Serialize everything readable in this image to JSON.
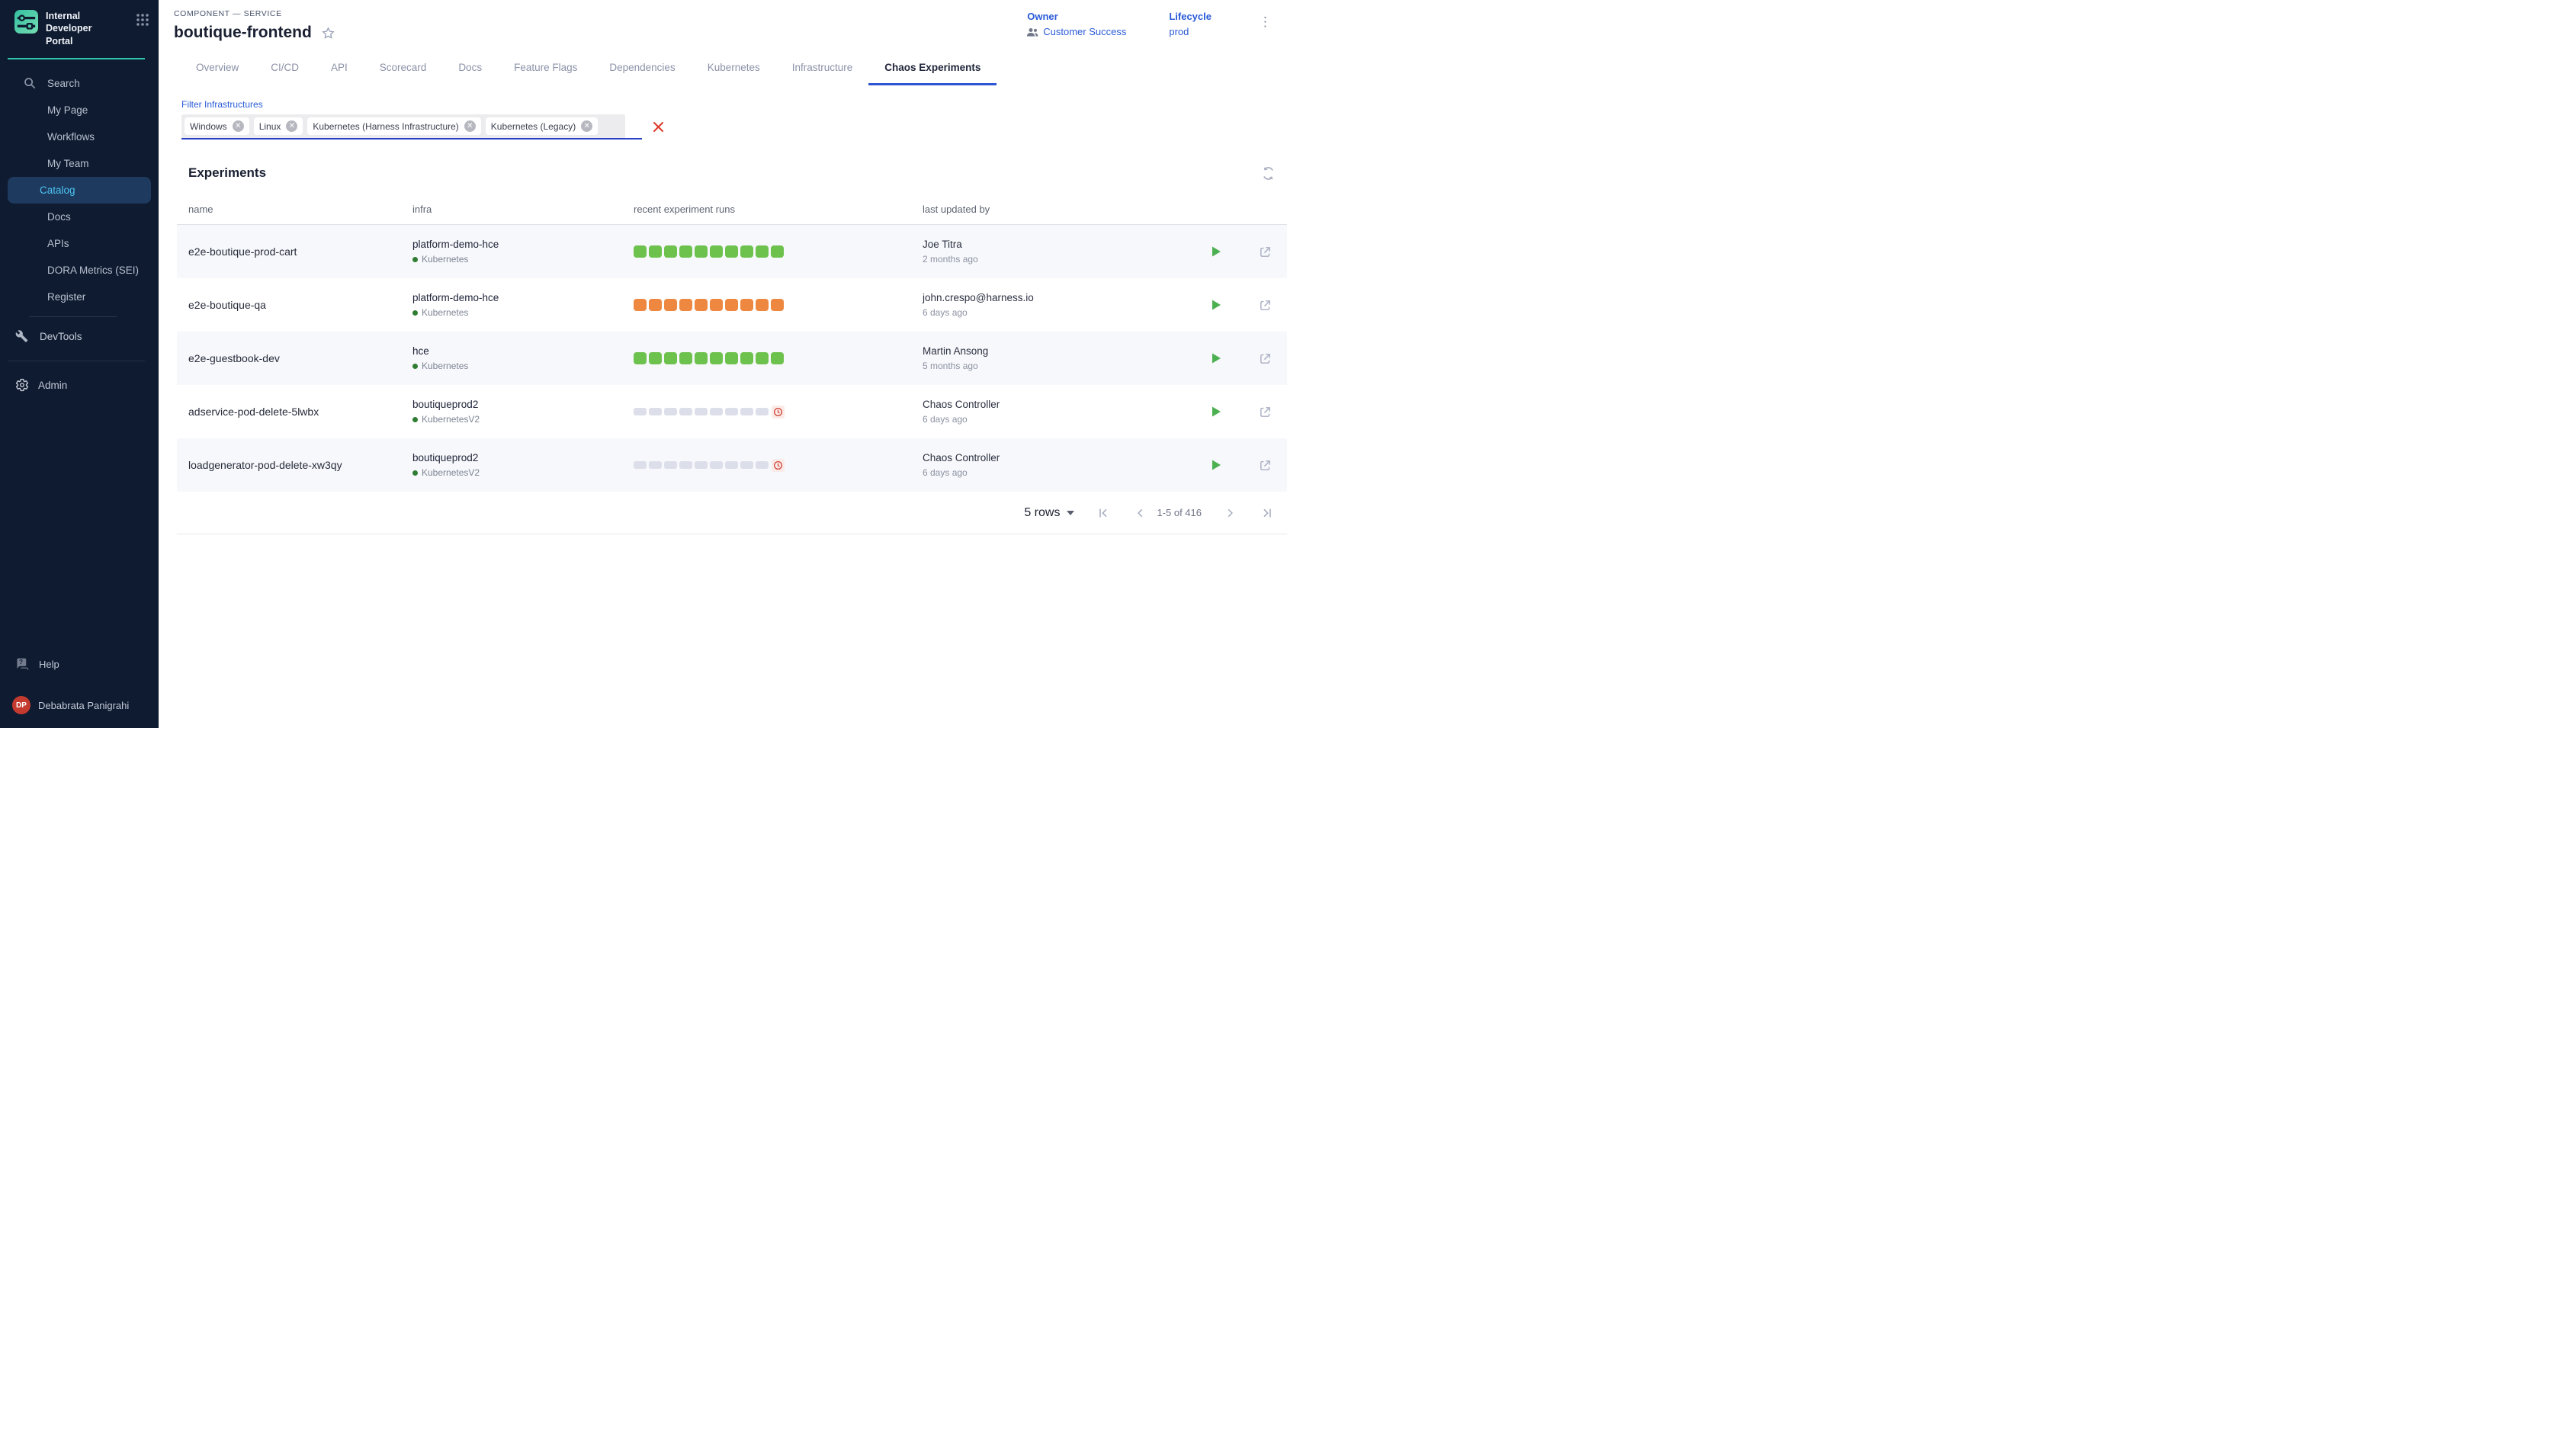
{
  "sidebar": {
    "logo_title": "Internal Developer Portal",
    "items": [
      {
        "label": "Search",
        "icon": "search",
        "active": false
      },
      {
        "label": "My Page",
        "active": false
      },
      {
        "label": "Workflows",
        "active": false
      },
      {
        "label": "My Team",
        "active": false
      },
      {
        "label": "Catalog",
        "active": true
      },
      {
        "label": "Docs",
        "active": false
      },
      {
        "label": "APIs",
        "active": false
      },
      {
        "label": "DORA Metrics (SEI)",
        "active": false
      },
      {
        "label": "Register",
        "active": false
      }
    ],
    "devtools_label": "DevTools",
    "admin_label": "Admin",
    "help_label": "Help",
    "user": {
      "initials": "DP",
      "name": "Debabrata Panigrahi"
    }
  },
  "header": {
    "breadcrumb": "COMPONENT — SERVICE",
    "title": "boutique-frontend",
    "owner_label": "Owner",
    "owner_value": "Customer Success",
    "lifecycle_label": "Lifecycle",
    "lifecycle_value": "prod"
  },
  "tabs": [
    {
      "label": "Overview",
      "active": false
    },
    {
      "label": "CI/CD",
      "active": false
    },
    {
      "label": "API",
      "active": false
    },
    {
      "label": "Scorecard",
      "active": false
    },
    {
      "label": "Docs",
      "active": false
    },
    {
      "label": "Feature Flags",
      "active": false
    },
    {
      "label": "Dependencies",
      "active": false
    },
    {
      "label": "Kubernetes",
      "active": false
    },
    {
      "label": "Infrastructure",
      "active": false
    },
    {
      "label": "Chaos Experiments",
      "active": true
    }
  ],
  "filter": {
    "label": "Filter Infrastructures",
    "chips": [
      "Windows",
      "Linux",
      "Kubernetes (Harness Infrastructure)",
      "Kubernetes (Legacy)"
    ]
  },
  "experiments": {
    "title": "Experiments",
    "columns": [
      "name",
      "infra",
      "recent experiment runs",
      "last updated by"
    ],
    "rows": [
      {
        "name": "e2e-boutique-prod-cart",
        "infra_name": "platform-demo-hce",
        "infra_type": "Kubernetes",
        "runs": {
          "status": "success",
          "color": "green",
          "count": 10,
          "clock": false
        },
        "updated_by": "Joe Titra",
        "updated_when": "2 months ago"
      },
      {
        "name": "e2e-boutique-qa",
        "infra_name": "platform-demo-hce",
        "infra_type": "Kubernetes",
        "runs": {
          "status": "failed",
          "color": "orange",
          "count": 10,
          "clock": false
        },
        "updated_by": "john.crespo@harness.io",
        "updated_when": "6 days ago"
      },
      {
        "name": "e2e-guestbook-dev",
        "infra_name": "hce",
        "infra_type": "Kubernetes",
        "runs": {
          "status": "success",
          "color": "green",
          "count": 10,
          "clock": false
        },
        "updated_by": "Martin Ansong",
        "updated_when": "5 months ago"
      },
      {
        "name": "adservice-pod-delete-5lwbx",
        "infra_name": "boutiqueprod2",
        "infra_type": "KubernetesV2",
        "runs": {
          "status": "pending",
          "color": "gray",
          "count": 9,
          "clock": true
        },
        "updated_by": "Chaos Controller",
        "updated_when": "6 days ago"
      },
      {
        "name": "loadgenerator-pod-delete-xw3qy",
        "infra_name": "boutiqueprod2",
        "infra_type": "KubernetesV2",
        "runs": {
          "status": "pending",
          "color": "gray",
          "count": 9,
          "clock": true
        },
        "updated_by": "Chaos Controller",
        "updated_when": "6 days ago"
      }
    ],
    "pagination": {
      "rows_per_page": "5 rows",
      "range": "1-5 of 416"
    }
  },
  "colors": {
    "success": "#6dc24e",
    "failed": "#ee8840",
    "pending": "#dcdee9",
    "accent_blue": "#2a5bd7",
    "sidebar_bg": "#0e1b30",
    "active_tab_underline": "#2f54d1",
    "clock_bg": "#fbebe8",
    "clock_fg": "#cf4236",
    "avatar_red": "#c43a2f",
    "teal_rule": "#2fc4ae"
  }
}
